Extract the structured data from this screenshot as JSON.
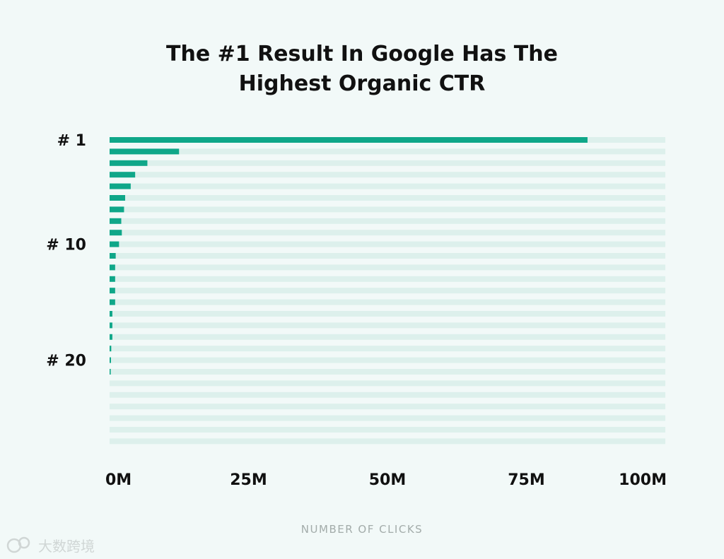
{
  "chart_data": {
    "type": "bar",
    "orientation": "horizontal",
    "title": [
      "The #1 Result In Google Has The",
      "Highest Organic CTR"
    ],
    "xlabel": "NUMBER OF CLICKS",
    "xlim": [
      0,
      100000000
    ],
    "x_ticks": [
      {
        "value": 0,
        "label": "0M"
      },
      {
        "value": 25000000,
        "label": "25M"
      },
      {
        "value": 50000000,
        "label": "50M"
      },
      {
        "value": 75000000,
        "label": "75M"
      },
      {
        "value": 100000000,
        "label": "100M"
      }
    ],
    "row_labels": [
      {
        "rank": 1,
        "label": "# 1"
      },
      {
        "rank": 10,
        "label": "# 10"
      },
      {
        "rank": 20,
        "label": "# 20"
      }
    ],
    "categories": [
      1,
      2,
      3,
      4,
      5,
      6,
      7,
      8,
      9,
      10,
      11,
      12,
      13,
      14,
      15,
      16,
      17,
      18,
      19,
      20,
      21,
      22,
      23,
      24,
      25,
      26,
      27
    ],
    "values": [
      86000000,
      12500000,
      6800000,
      4600000,
      3800000,
      2800000,
      2600000,
      2100000,
      2200000,
      1700000,
      1100000,
      1000000,
      1000000,
      1000000,
      1000000,
      500000,
      500000,
      500000,
      300000,
      250000,
      200000,
      0,
      0,
      0,
      0,
      0,
      0
    ],
    "colors": {
      "bar": "#0fa789",
      "track": "#ddf0ec"
    }
  },
  "watermark": {
    "text": "大数跨境"
  }
}
